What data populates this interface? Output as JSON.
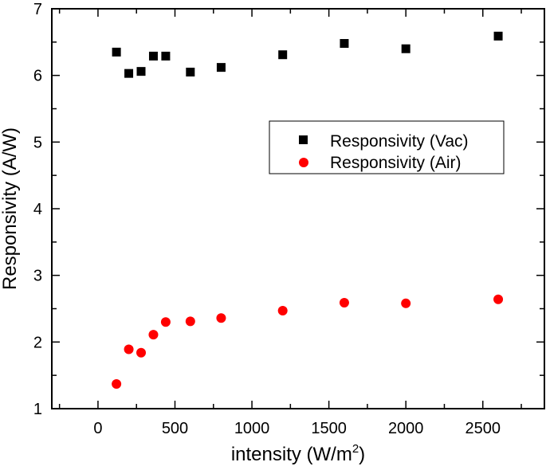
{
  "chart_data": {
    "type": "scatter",
    "title": "",
    "xlabel": "intensity (W/m",
    "xlabel_sup": "2",
    "xlabel_end": ")",
    "ylabel": "Responsivity (A/W)",
    "xlim": [
      -300,
      2900
    ],
    "ylim": [
      1,
      7
    ],
    "xticks": [
      0,
      500,
      1000,
      1500,
      2000,
      2500
    ],
    "yticks": [
      1,
      2,
      3,
      4,
      5,
      6,
      7
    ],
    "grid": false,
    "legend_position": "center-right",
    "series": [
      {
        "name": "Responsivity (Vac)",
        "marker": "square",
        "color": "#000000",
        "x": [
          120,
          200,
          280,
          360,
          440,
          600,
          800,
          1200,
          1600,
          2000,
          2600
        ],
        "y": [
          6.35,
          6.03,
          6.06,
          6.29,
          6.29,
          6.05,
          6.12,
          6.31,
          6.48,
          6.4,
          6.59
        ]
      },
      {
        "name": "Responsivity (Air)",
        "marker": "circle",
        "color": "#ff0000",
        "x": [
          120,
          200,
          280,
          360,
          440,
          600,
          800,
          1200,
          1600,
          2000,
          2600
        ],
        "y": [
          1.37,
          1.89,
          1.84,
          2.11,
          2.3,
          2.31,
          2.36,
          2.47,
          2.59,
          2.58,
          2.64
        ]
      }
    ]
  }
}
